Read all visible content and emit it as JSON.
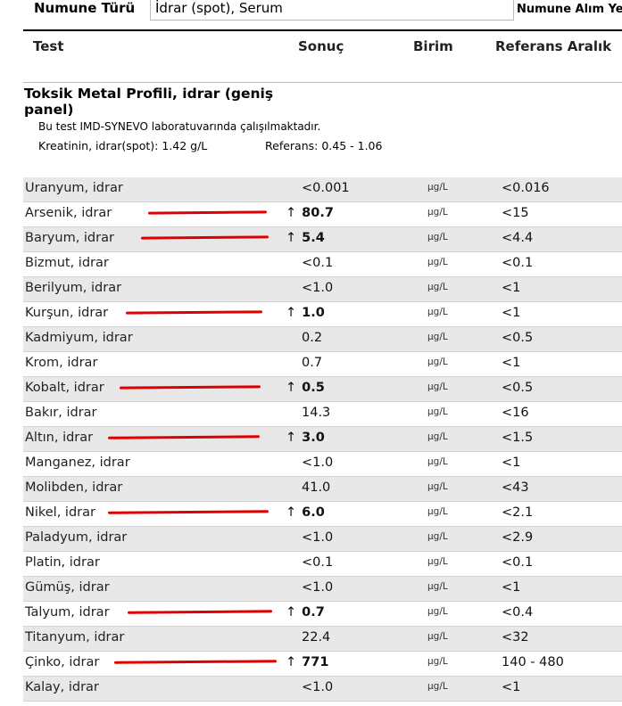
{
  "header": {
    "sample_type_label": "Numune Türü",
    "sample_type_value": "İdrar (spot), Serum",
    "collection_label": "Numune Alım Ye"
  },
  "columns": {
    "test": "Test",
    "result": "Sonuç",
    "unit": "Birim",
    "reference": "Referans Aralık"
  },
  "section": {
    "title": "Toksik Metal Profili, idrar (geniş panel)",
    "note": "Bu test IMD-SYNEVO laboratuvarında çalışılmaktadır.",
    "creatinine": "Kreatinin, idrar(spot): 1.42 g/L",
    "creatinine_reference": "Referans: 0.45 - 1.06"
  },
  "rows": [
    {
      "name": "Uranyum, idrar",
      "result": "<0.001",
      "unit": "µg/L",
      "reference": "<0.016",
      "flag": false
    },
    {
      "name": "Arsenik, idrar",
      "result": "80.7",
      "unit": "µg/L",
      "reference": "<15",
      "flag": true
    },
    {
      "name": "Baryum, idrar",
      "result": "5.4",
      "unit": "µg/L",
      "reference": "<4.4",
      "flag": true
    },
    {
      "name": "Bizmut, idrar",
      "result": "<0.1",
      "unit": "µg/L",
      "reference": "<0.1",
      "flag": false
    },
    {
      "name": "Berilyum, idrar",
      "result": "<1.0",
      "unit": "µg/L",
      "reference": "<1",
      "flag": false
    },
    {
      "name": "Kurşun, idrar",
      "result": "1.0",
      "unit": "µg/L",
      "reference": "<1",
      "flag": true
    },
    {
      "name": "Kadmiyum, idrar",
      "result": "0.2",
      "unit": "µg/L",
      "reference": "<0.5",
      "flag": false
    },
    {
      "name": "Krom, idrar",
      "result": "0.7",
      "unit": "µg/L",
      "reference": "<1",
      "flag": false
    },
    {
      "name": "Kobalt, idrar",
      "result": "0.5",
      "unit": "µg/L",
      "reference": "<0.5",
      "flag": true
    },
    {
      "name": "Bakır, idrar",
      "result": "14.3",
      "unit": "µg/L",
      "reference": "<16",
      "flag": false
    },
    {
      "name": "Altın, idrar",
      "result": "3.0",
      "unit": "µg/L",
      "reference": "<1.5",
      "flag": true
    },
    {
      "name": "Manganez, idrar",
      "result": "<1.0",
      "unit": "µg/L",
      "reference": "<1",
      "flag": false
    },
    {
      "name": "Molibden, idrar",
      "result": "41.0",
      "unit": "µg/L",
      "reference": "<43",
      "flag": false
    },
    {
      "name": "Nikel, idrar",
      "result": "6.0",
      "unit": "µg/L",
      "reference": "<2.1",
      "flag": true
    },
    {
      "name": "Paladyum, idrar",
      "result": "<1.0",
      "unit": "µg/L",
      "reference": "<2.9",
      "flag": false
    },
    {
      "name": "Platin, idrar",
      "result": "<0.1",
      "unit": "µg/L",
      "reference": "<0.1",
      "flag": false
    },
    {
      "name": "Gümüş, idrar",
      "result": "<1.0",
      "unit": "µg/L",
      "reference": "<1",
      "flag": false
    },
    {
      "name": "Talyum, idrar",
      "result": "0.7",
      "unit": "µg/L",
      "reference": "<0.4",
      "flag": true
    },
    {
      "name": "Titanyum, idrar",
      "result": "22.4",
      "unit": "µg/L",
      "reference": "<32",
      "flag": false
    },
    {
      "name": "Çinko, idrar",
      "result": "771",
      "unit": "µg/L",
      "reference": "140 - 480",
      "flag": true
    },
    {
      "name": "Kalay, idrar",
      "result": "<1.0",
      "unit": "µg/L",
      "reference": "<1",
      "flag": false
    }
  ],
  "colors": {
    "highlight_mark": "#e00000",
    "row_shade": "#e8e8e8"
  }
}
